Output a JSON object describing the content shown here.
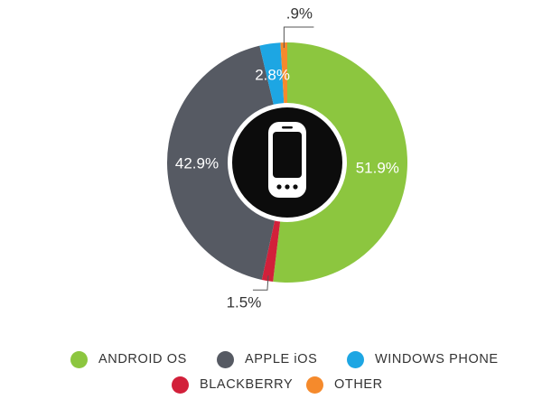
{
  "chart_data": {
    "type": "pie",
    "style": "donut",
    "center_icon": "smartphone-icon",
    "slices": [
      {
        "label": "ANDROID OS",
        "value": 51.9,
        "display": "51.9%",
        "color": "#8cc63f"
      },
      {
        "label": "BLACKBERRY",
        "value": 1.5,
        "display": "1.5%",
        "color": "#d2203a"
      },
      {
        "label": "APPLE iOS",
        "value": 42.9,
        "display": "42.9%",
        "color": "#565a63"
      },
      {
        "label": "WINDOWS PHONE",
        "value": 2.8,
        "display": "2.8%",
        "color": "#1da6e3"
      },
      {
        "label": "OTHER",
        "value": 0.9,
        "display": ".9%",
        "color": "#f58a2c"
      }
    ],
    "legend": [
      {
        "label": "ANDROID OS",
        "color": "#8cc63f"
      },
      {
        "label": "APPLE iOS",
        "color": "#565a63"
      },
      {
        "label": "WINDOWS PHONE",
        "color": "#1da6e3"
      },
      {
        "label": "BLACKBERRY",
        "color": "#d2203a"
      },
      {
        "label": "OTHER",
        "color": "#f58a2c"
      }
    ],
    "legend_placement": "bottom"
  }
}
